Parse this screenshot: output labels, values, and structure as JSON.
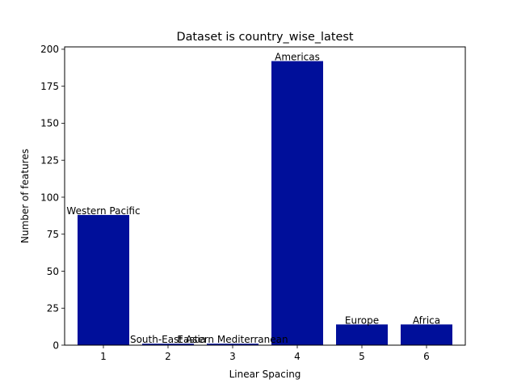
{
  "chart_data": {
    "type": "bar",
    "title": "Dataset is country_wise_latest",
    "xlabel": "Linear Spacing",
    "ylabel": "Number of features",
    "x": [
      1,
      2,
      3,
      4,
      5,
      6
    ],
    "values": [
      88,
      1,
      1,
      192,
      14,
      14
    ],
    "bar_labels": [
      "Western Pacific",
      "South-East Asia",
      "Eastern Mediterranean",
      "Americas",
      "Europe",
      "Africa"
    ],
    "xlim": [
      0.4,
      6.6
    ],
    "ylim": [
      0,
      201.6
    ],
    "xticks": [
      "1",
      "2",
      "3",
      "4",
      "5",
      "6"
    ],
    "yticks": [
      "0",
      "25",
      "50",
      "75",
      "100",
      "125",
      "150",
      "175",
      "200"
    ],
    "bar_color": "#000f9a",
    "grid": false
  }
}
